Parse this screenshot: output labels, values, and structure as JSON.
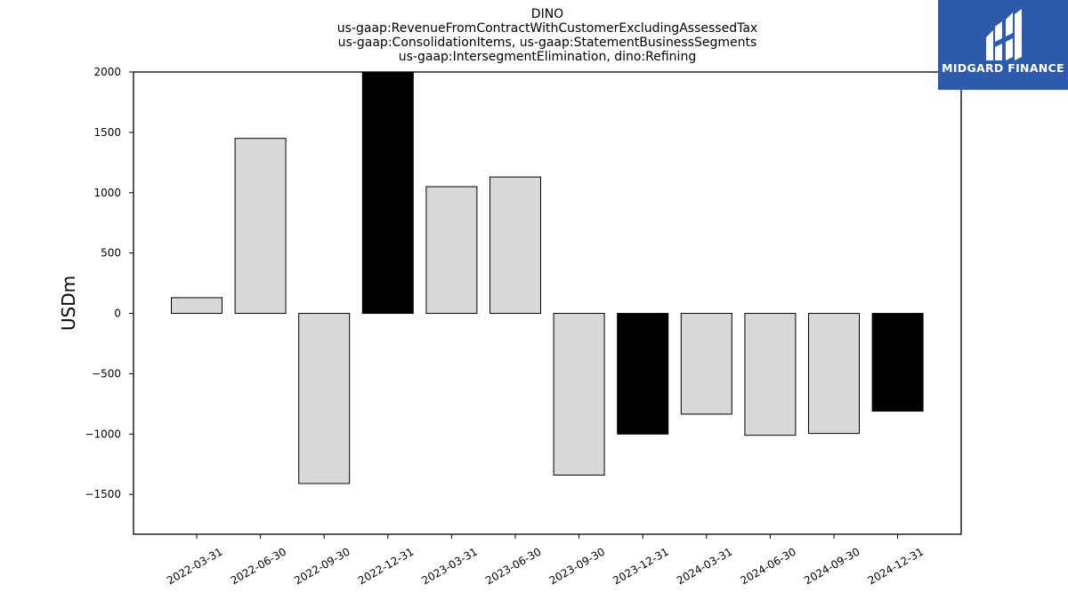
{
  "chart_data": {
    "type": "bar",
    "title_lines": [
      "DINO",
      "us-gaap:RevenueFromContractWithCustomerExcludingAssessedTax",
      "us-gaap:ConsolidationItems, us-gaap:StatementBusinessSegments",
      "us-gaap:IntersegmentElimination, dino:Refining"
    ],
    "ylabel": "USDm",
    "xlabel": "",
    "ylim": [
      -1830,
      2000
    ],
    "yticks": [
      2000,
      1500,
      1000,
      500,
      0,
      -500,
      -1000,
      -1500
    ],
    "categories": [
      "2022-03-31",
      "2022-06-30",
      "2022-09-30",
      "2022-12-31",
      "2023-03-31",
      "2023-06-30",
      "2023-09-30",
      "2023-12-31",
      "2024-03-31",
      "2024-06-30",
      "2024-09-30",
      "2024-12-31"
    ],
    "values": [
      130,
      1450,
      -1410,
      2000,
      1050,
      1130,
      -1340,
      -1000,
      -835,
      -1010,
      -995,
      -810
    ],
    "bar_colors": [
      "#d8d8d8",
      "#d8d8d8",
      "#d8d8d8",
      "#000000",
      "#d8d8d8",
      "#d8d8d8",
      "#d8d8d8",
      "#000000",
      "#d8d8d8",
      "#d8d8d8",
      "#d8d8d8",
      "#000000"
    ],
    "grid": false,
    "legend": "none"
  },
  "logo": {
    "text": "MIDGARD FINANCE",
    "background": "#2c5bab",
    "icon": "midgard-logo-icon"
  }
}
